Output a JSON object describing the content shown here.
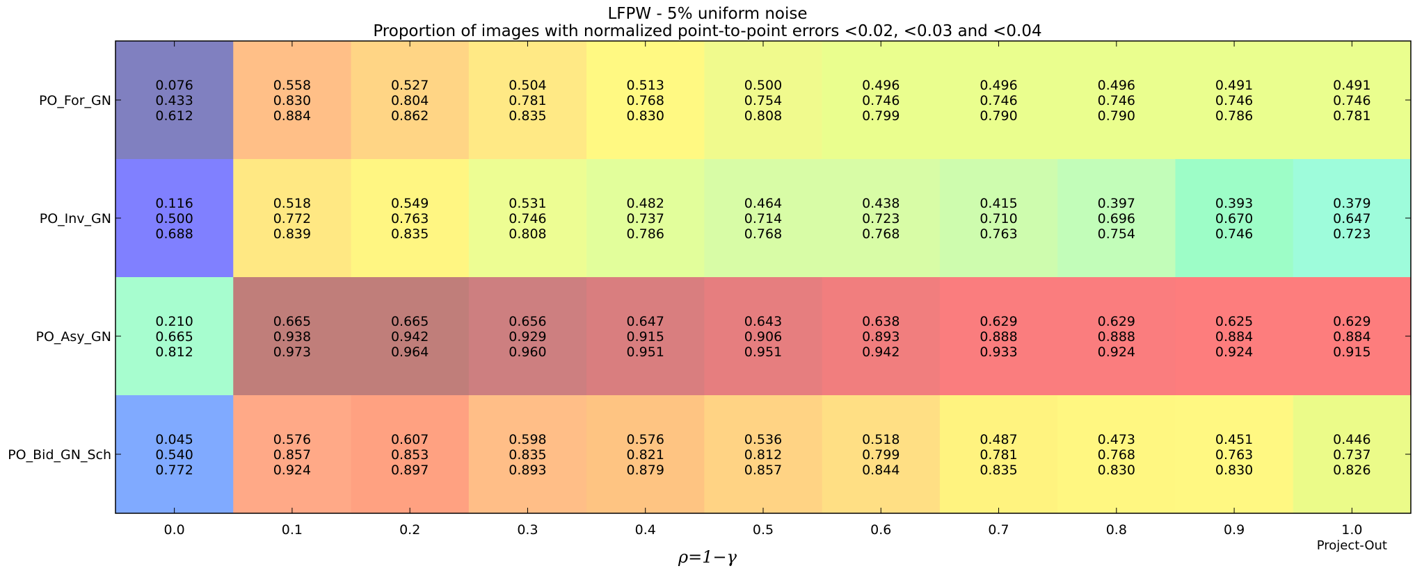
{
  "chart_data": {
    "type": "heatmap",
    "title": "LFPW - 5% uniform noise",
    "subtitle": "Proportion of images with normalized point-to-point errors <0.02, <0.03 and <0.04",
    "xlabel": "ρ=1−γ",
    "x_extra_label": "Project-Out",
    "columns": [
      "0.0",
      "0.1",
      "0.2",
      "0.3",
      "0.4",
      "0.5",
      "0.6",
      "0.7",
      "0.8",
      "0.9",
      "1.0"
    ],
    "rows": [
      "PO_For_GN",
      "PO_Inv_GN",
      "PO_Asy_GN",
      "PO_Bid_GN_Sch"
    ],
    "cells": [
      [
        [
          "0.076",
          "0.433",
          "0.612"
        ],
        [
          "0.558",
          "0.830",
          "0.884"
        ],
        [
          "0.527",
          "0.804",
          "0.862"
        ],
        [
          "0.504",
          "0.781",
          "0.835"
        ],
        [
          "0.513",
          "0.768",
          "0.830"
        ],
        [
          "0.500",
          "0.754",
          "0.808"
        ],
        [
          "0.496",
          "0.746",
          "0.799"
        ],
        [
          "0.496",
          "0.746",
          "0.790"
        ],
        [
          "0.496",
          "0.746",
          "0.790"
        ],
        [
          "0.491",
          "0.746",
          "0.786"
        ],
        [
          "0.491",
          "0.746",
          "0.781"
        ]
      ],
      [
        [
          "0.116",
          "0.500",
          "0.688"
        ],
        [
          "0.518",
          "0.772",
          "0.839"
        ],
        [
          "0.549",
          "0.763",
          "0.835"
        ],
        [
          "0.531",
          "0.746",
          "0.808"
        ],
        [
          "0.482",
          "0.737",
          "0.786"
        ],
        [
          "0.464",
          "0.714",
          "0.768"
        ],
        [
          "0.438",
          "0.723",
          "0.768"
        ],
        [
          "0.415",
          "0.710",
          "0.763"
        ],
        [
          "0.397",
          "0.696",
          "0.754"
        ],
        [
          "0.393",
          "0.670",
          "0.746"
        ],
        [
          "0.379",
          "0.647",
          "0.723"
        ]
      ],
      [
        [
          "0.210",
          "0.665",
          "0.812"
        ],
        [
          "0.665",
          "0.938",
          "0.973"
        ],
        [
          "0.665",
          "0.942",
          "0.964"
        ],
        [
          "0.656",
          "0.929",
          "0.960"
        ],
        [
          "0.647",
          "0.915",
          "0.951"
        ],
        [
          "0.643",
          "0.906",
          "0.951"
        ],
        [
          "0.638",
          "0.893",
          "0.942"
        ],
        [
          "0.629",
          "0.888",
          "0.933"
        ],
        [
          "0.629",
          "0.888",
          "0.924"
        ],
        [
          "0.625",
          "0.884",
          "0.924"
        ],
        [
          "0.629",
          "0.884",
          "0.915"
        ]
      ],
      [
        [
          "0.045",
          "0.540",
          "0.772"
        ],
        [
          "0.576",
          "0.857",
          "0.924"
        ],
        [
          "0.607",
          "0.853",
          "0.897"
        ],
        [
          "0.598",
          "0.835",
          "0.893"
        ],
        [
          "0.576",
          "0.821",
          "0.879"
        ],
        [
          "0.536",
          "0.812",
          "0.857"
        ],
        [
          "0.518",
          "0.799",
          "0.844"
        ],
        [
          "0.487",
          "0.781",
          "0.835"
        ],
        [
          "0.473",
          "0.768",
          "0.830"
        ],
        [
          "0.451",
          "0.763",
          "0.830"
        ],
        [
          "0.446",
          "0.737",
          "0.826"
        ]
      ]
    ],
    "cell_colors": [
      [
        "#8080c0",
        "#ffbf87",
        "#ffd585",
        "#ffe985",
        "#fff982",
        "#f0fa8d",
        "#eafe8e",
        "#eafe8e",
        "#eafe8e",
        "#eafe8e",
        "#eafe8e"
      ],
      [
        "#8080ff",
        "#ffe883",
        "#fff682",
        "#edfd93",
        "#e2fe9b",
        "#d8fca6",
        "#d8fca6",
        "#cefcae",
        "#c2fdb9",
        "#9dfdc7",
        "#9efcdb"
      ],
      [
        "#a7fdcf",
        "#c07e7a",
        "#c07e7a",
        "#cd7f80",
        "#d97e7f",
        "#e67e7f",
        "#f17e7e",
        "#fa7d7e",
        "#fa7d7e",
        "#fd7d7d",
        "#fd7d7d"
      ],
      [
        "#80aaff",
        "#ffa987",
        "#ffa181",
        "#ffbe87",
        "#fec482",
        "#ffd384",
        "#ffdf84",
        "#fff37f",
        "#fff781",
        "#fff882",
        "#ebfb89"
      ]
    ]
  }
}
